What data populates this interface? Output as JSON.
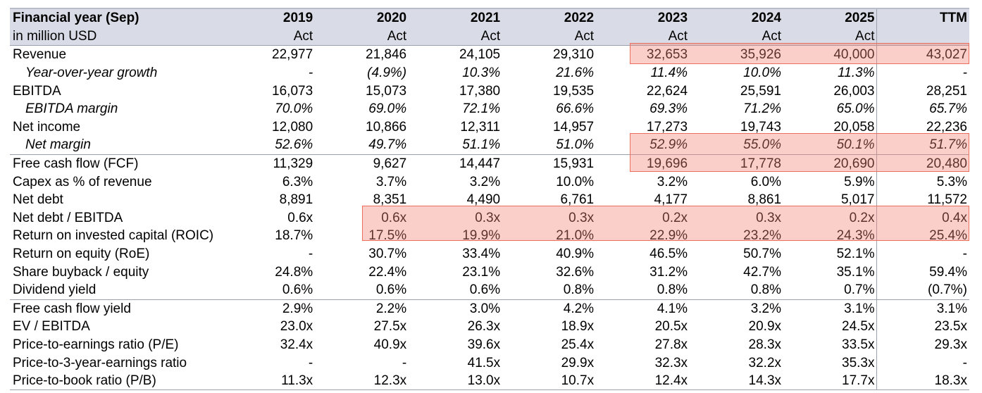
{
  "header": {
    "title": "Financial year (Sep)",
    "subtitle": "in million USD",
    "years": [
      "2019",
      "2020",
      "2021",
      "2022",
      "2023",
      "2024",
      "2025",
      "TTM"
    ],
    "status": [
      "Act",
      "Act",
      "Act",
      "Act",
      "Act",
      "Act",
      "Act",
      ""
    ]
  },
  "rows": [
    {
      "label": "Revenue",
      "values": [
        "22,977",
        "21,846",
        "24,105",
        "29,310",
        "32,653",
        "35,926",
        "40,000",
        "43,027"
      ]
    },
    {
      "label": "Year-over-year growth",
      "values": [
        "-",
        "(4.9%)",
        "10.3%",
        "21.6%",
        "11.4%",
        "10.0%",
        "11.3%",
        "-"
      ]
    },
    {
      "label": "EBITDA",
      "values": [
        "16,073",
        "15,073",
        "17,380",
        "19,535",
        "22,624",
        "25,591",
        "26,003",
        "28,251"
      ]
    },
    {
      "label": "EBITDA margin",
      "values": [
        "70.0%",
        "69.0%",
        "72.1%",
        "66.6%",
        "69.3%",
        "71.2%",
        "65.0%",
        "65.7%"
      ]
    },
    {
      "label": "Net income",
      "values": [
        "12,080",
        "10,866",
        "12,311",
        "14,957",
        "17,273",
        "19,743",
        "20,058",
        "22,236"
      ]
    },
    {
      "label": "Net margin",
      "values": [
        "52.6%",
        "49.7%",
        "51.1%",
        "51.0%",
        "52.9%",
        "55.0%",
        "50.1%",
        "51.7%"
      ]
    },
    {
      "label": "Free cash flow (FCF)",
      "values": [
        "11,329",
        "9,627",
        "14,447",
        "15,931",
        "19,696",
        "17,778",
        "20,690",
        "20,480"
      ]
    },
    {
      "label": "Capex as % of revenue",
      "values": [
        "6.3%",
        "3.7%",
        "3.2%",
        "10.0%",
        "3.2%",
        "6.0%",
        "5.9%",
        "5.3%"
      ]
    },
    {
      "label": "Net debt",
      "values": [
        "8,891",
        "8,351",
        "4,490",
        "6,761",
        "4,177",
        "8,861",
        "5,017",
        "11,572"
      ]
    },
    {
      "label": "Net debt / EBITDA",
      "values": [
        "0.6x",
        "0.6x",
        "0.3x",
        "0.3x",
        "0.2x",
        "0.3x",
        "0.2x",
        "0.4x"
      ]
    },
    {
      "label": "Return on invested capital (ROIC)",
      "values": [
        "18.7%",
        "17.5%",
        "19.9%",
        "21.0%",
        "22.9%",
        "23.2%",
        "24.3%",
        "25.4%"
      ]
    },
    {
      "label": "Return on equity (RoE)",
      "values": [
        "-",
        "30.7%",
        "33.4%",
        "40.9%",
        "46.5%",
        "50.7%",
        "52.1%",
        "-"
      ]
    },
    {
      "label": "Share buyback / equity",
      "values": [
        "24.8%",
        "22.4%",
        "23.1%",
        "32.6%",
        "31.2%",
        "42.7%",
        "35.1%",
        "59.4%"
      ]
    },
    {
      "label": "Dividend yield",
      "values": [
        "0.6%",
        "0.6%",
        "0.6%",
        "0.8%",
        "0.8%",
        "0.8%",
        "0.7%",
        "(0.7%)"
      ]
    },
    {
      "label": "Free cash flow yield",
      "values": [
        "2.9%",
        "2.2%",
        "3.0%",
        "4.2%",
        "4.1%",
        "3.2%",
        "3.1%",
        "3.1%"
      ]
    },
    {
      "label": "EV / EBITDA",
      "values": [
        "23.0x",
        "27.5x",
        "26.3x",
        "18.9x",
        "20.5x",
        "20.9x",
        "24.5x",
        "23.5x"
      ]
    },
    {
      "label": "Price-to-earnings ratio (P/E)",
      "values": [
        "32.4x",
        "40.9x",
        "39.6x",
        "25.4x",
        "27.8x",
        "28.3x",
        "33.5x",
        "29.3x"
      ]
    },
    {
      "label": "Price-to-3-year-earnings ratio",
      "values": [
        "-",
        "-",
        "41.5x",
        "29.9x",
        "32.3x",
        "32.2x",
        "35.3x",
        "-"
      ]
    },
    {
      "label": "Price-to-book ratio (P/B)",
      "values": [
        "11.3x",
        "12.3x",
        "13.0x",
        "10.7x",
        "12.4x",
        "14.3x",
        "17.7x",
        "18.3x"
      ]
    }
  ],
  "highlight_color": "#f4a093"
}
